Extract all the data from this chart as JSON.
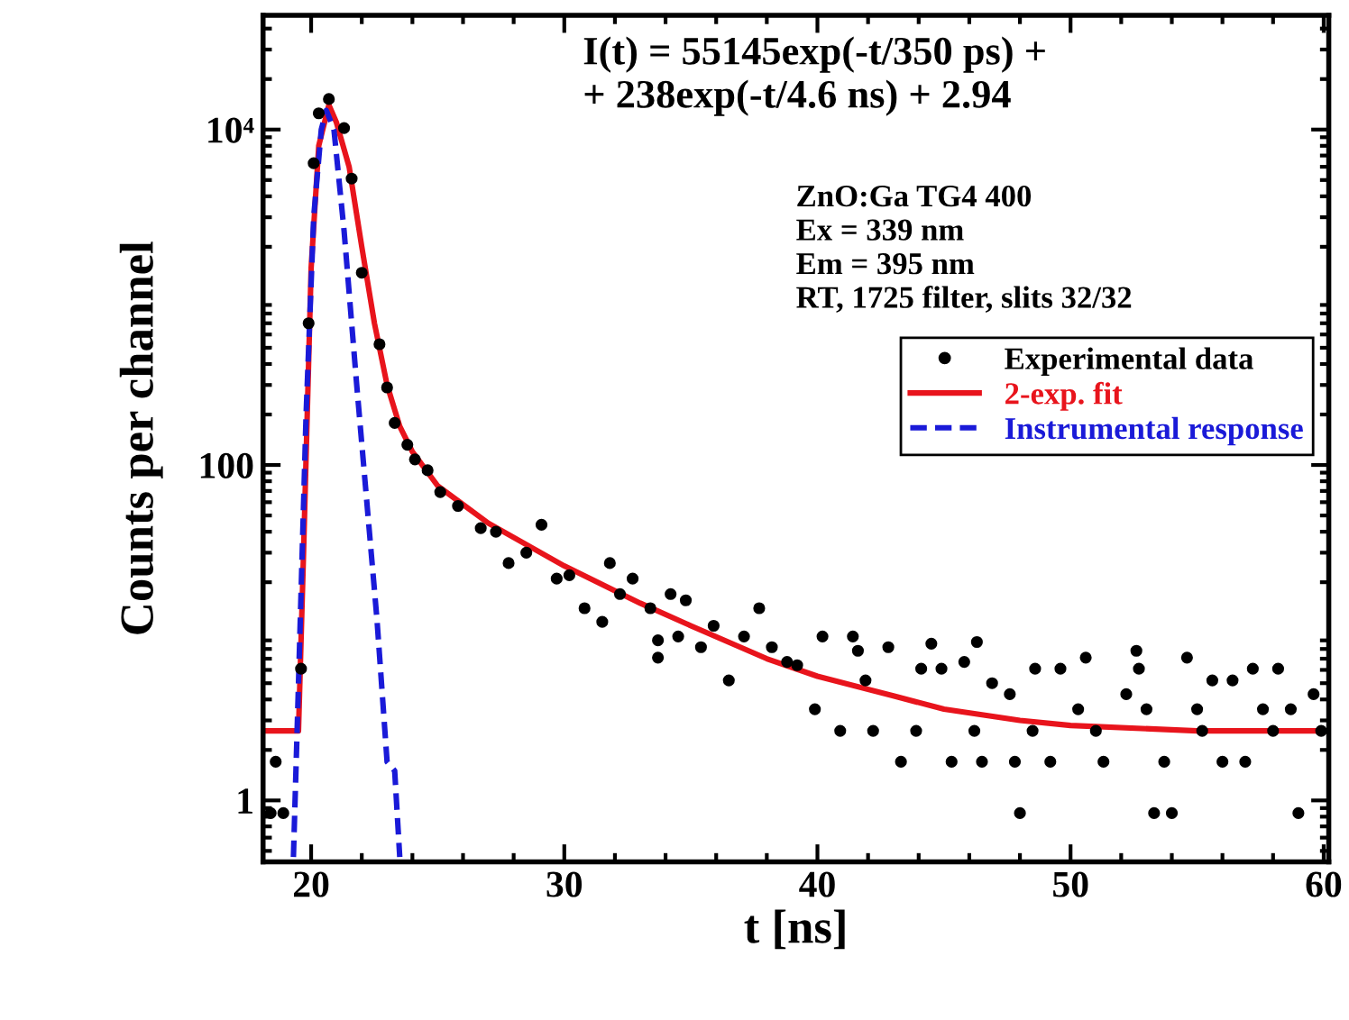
{
  "chart_data": {
    "type": "scatter",
    "xlabel": "t [ns]",
    "ylabel": "Counts per channel",
    "log": "y",
    "xlim": [
      18.1,
      60.2
    ],
    "ylim": [
      0.43,
      48000
    ],
    "xticks": [
      20,
      30,
      40,
      50,
      60
    ],
    "yticks": [
      1,
      100,
      {
        "value": 10000,
        "label": "10⁴"
      }
    ],
    "grid": false,
    "legend": "right",
    "annotations": [
      "I(t) = 55145exp(-t/350 ps) +\n+ 238exp(-t/4.6 ns) + 2.94",
      "ZnO:Ga TG4 400\nEx = 339 nm\nEm = 395 nm\nRT, 1725 filter, slits 32/32"
    ],
    "series": [
      {
        "name": "Experimental data",
        "marker": "circle",
        "color": "#000000",
        "x": [
          18.4,
          18.6,
          18.9,
          19.6,
          19.9,
          20.1,
          20.3,
          20.7,
          21.3,
          21.6,
          22.0,
          22.7,
          23.0,
          23.3,
          23.8,
          24.1,
          24.6,
          25.1,
          25.8,
          26.7,
          27.3,
          27.8,
          28.5,
          29.1,
          29.7,
          30.2,
          30.8,
          31.5,
          31.8,
          32.2,
          32.7,
          33.4,
          33.7,
          33.7,
          34.2,
          34.5,
          34.8,
          35.4,
          35.9,
          36.5,
          37.1,
          37.7,
          38.2,
          38.8,
          39.2,
          39.9,
          40.2,
          40.9,
          41.4,
          41.6,
          41.9,
          42.2,
          42.8,
          43.3,
          43.9,
          44.1,
          44.5,
          44.9,
          45.3,
          45.8,
          46.2,
          46.3,
          46.5,
          46.9,
          47.6,
          47.8,
          48.0,
          48.5,
          48.6,
          49.2,
          49.6,
          50.3,
          50.6,
          51.0,
          51.3,
          52.2,
          52.6,
          52.7,
          53.0,
          53.3,
          53.7,
          54.0,
          54.6,
          55.0,
          55.2,
          55.6,
          56.0,
          56.4,
          56.9,
          57.2,
          57.6,
          58.0,
          58.2,
          58.7,
          59.0,
          59.6,
          59.9
        ],
        "values": [
          0.84,
          1.7,
          0.84,
          6.1,
          700,
          6300,
          12500,
          15200,
          10200,
          5100,
          1400,
          525,
          290,
          178,
          132,
          108,
          93,
          69,
          57,
          42,
          40,
          26,
          30,
          44,
          21,
          22,
          14,
          11.6,
          26,
          17,
          21,
          14,
          9,
          7.1,
          17,
          9.5,
          15.6,
          8.2,
          11,
          5.2,
          9.5,
          14,
          8.2,
          6.7,
          6.4,
          3.5,
          9.5,
          2.6,
          9.5,
          7.8,
          5.2,
          2.6,
          8.2,
          1.7,
          2.6,
          6.1,
          8.6,
          6.1,
          1.7,
          6.7,
          2.6,
          8.8,
          1.7,
          5.0,
          4.3,
          1.7,
          0.84,
          2.6,
          6.1,
          1.7,
          6.1,
          3.5,
          7.1,
          2.6,
          1.7,
          4.3,
          7.8,
          6.1,
          3.5,
          0.84,
          1.7,
          0.84,
          7.1,
          3.5,
          2.6,
          5.2,
          1.7,
          5.2,
          1.7,
          6.1,
          3.5,
          2.6,
          6.1,
          3.5,
          0.84,
          4.3,
          2.6
        ]
      },
      {
        "name": "2-exp. fit",
        "type": "line",
        "line_style": "solid",
        "marker": "none",
        "color": "#e8141c",
        "x": [
          18.1,
          19.5,
          19.7,
          20.0,
          20.3,
          20.7,
          21.0,
          21.5,
          22.0,
          22.5,
          23.0,
          23.5,
          24.0,
          25.0,
          27.0,
          30.0,
          33.0,
          35.0,
          38.0,
          40.0,
          43.0,
          45.0,
          48.0,
          50.0,
          55.0,
          60.2
        ],
        "values": [
          2.6,
          2.6,
          30,
          1500,
          8000,
          14000,
          11000,
          6000,
          2000,
          700,
          300,
          170,
          120,
          75,
          45,
          25,
          15,
          11,
          7,
          5.5,
          4.2,
          3.5,
          3.0,
          2.8,
          2.6,
          2.6
        ]
      },
      {
        "name": "Instrumental response",
        "type": "line",
        "line_style": "dashed",
        "marker": "none",
        "color": "#1a1ad8",
        "x": [
          19.3,
          19.5,
          19.8,
          20.1,
          20.4,
          20.6,
          20.9,
          21.3,
          21.8,
          22.2,
          22.6,
          23.0,
          23.3,
          23.5
        ],
        "values": [
          0.46,
          5,
          200,
          3000,
          10000,
          13000,
          10000,
          2500,
          300,
          60,
          12,
          1.7,
          1.5,
          0.46
        ]
      }
    ]
  }
}
